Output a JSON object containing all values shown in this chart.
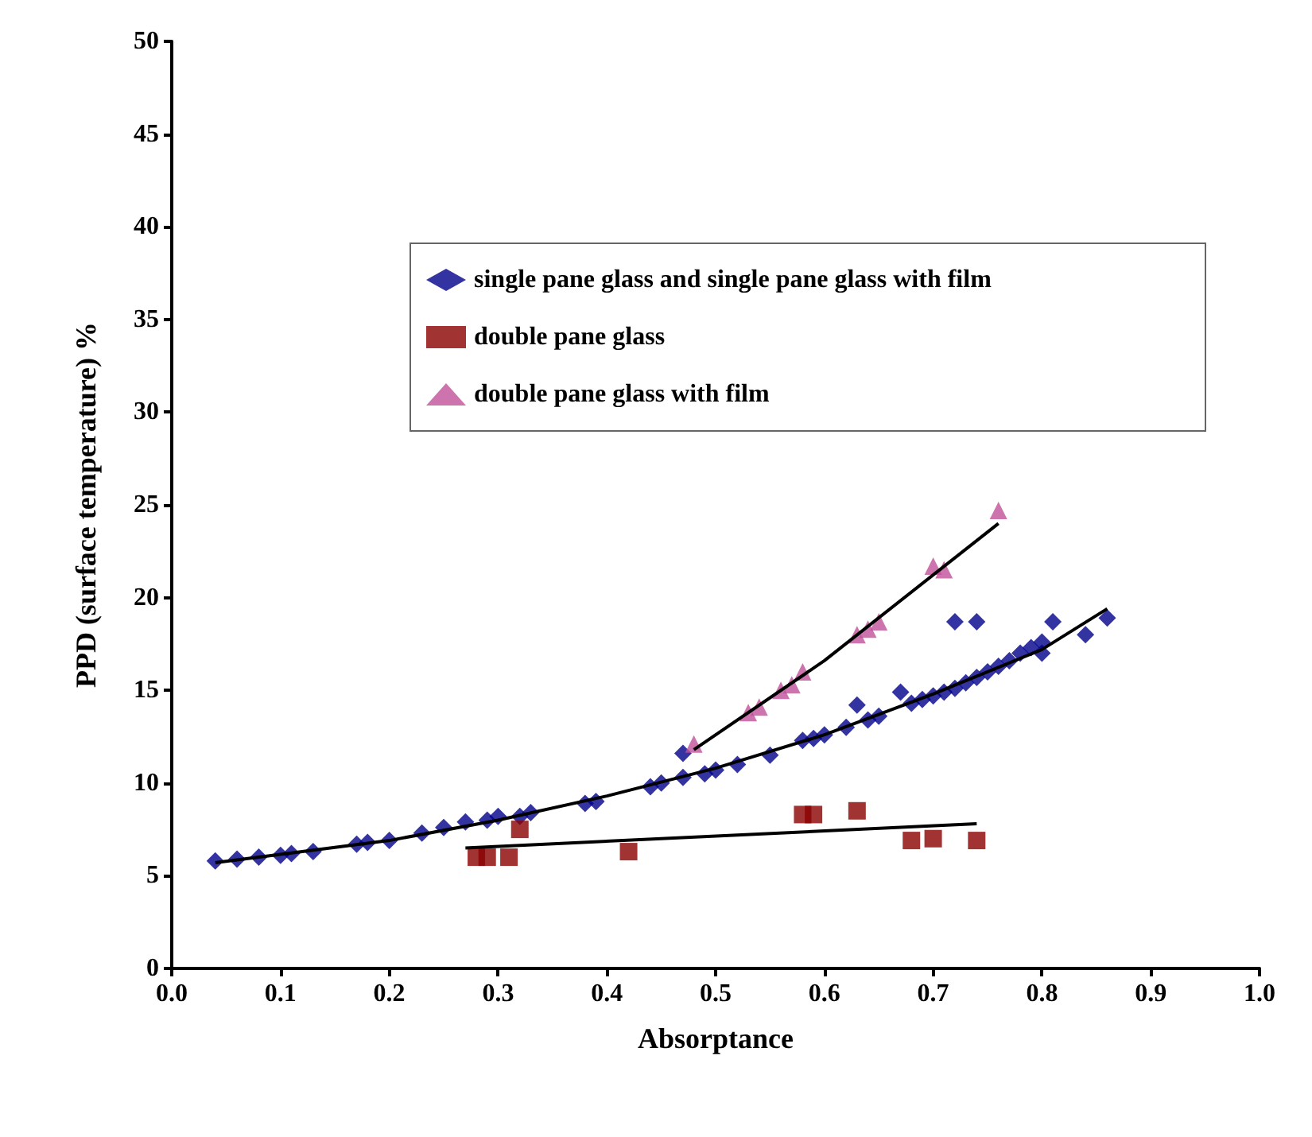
{
  "chart_data": {
    "type": "scatter",
    "xlabel": "Absorptance",
    "ylabel": "PPD (surface temperature) %",
    "xlim": [
      0,
      1
    ],
    "xticks": [
      {
        "value": 0,
        "label": "0.0"
      },
      0.1,
      0.2,
      0.3,
      0.4,
      0.5,
      0.6,
      0.7,
      0.8,
      0.9,
      {
        "value": 1,
        "label": "1.0"
      }
    ],
    "ylim": [
      0,
      50
    ],
    "yticks": [
      0,
      5,
      10,
      15,
      20,
      25,
      30,
      35,
      40,
      45,
      50
    ],
    "grid": false,
    "legend": "top right",
    "series": [
      {
        "name": "single pane glass and single pane glass with film",
        "color": "#00008b",
        "marker": "diamond",
        "x": [
          0.04,
          0.06,
          0.08,
          0.1,
          0.11,
          0.13,
          0.17,
          0.18,
          0.2,
          0.23,
          0.25,
          0.27,
          0.29,
          0.3,
          0.32,
          0.33,
          0.38,
          0.39,
          0.44,
          0.45,
          0.47,
          0.47,
          0.49,
          0.5,
          0.52,
          0.55,
          0.58,
          0.59,
          0.6,
          0.62,
          0.63,
          0.64,
          0.65,
          0.67,
          0.68,
          0.69,
          0.7,
          0.71,
          0.72,
          0.73,
          0.74,
          0.75,
          0.76,
          0.77,
          0.78,
          0.79,
          0.8,
          0.81,
          0.8,
          0.84,
          0.86,
          0.72,
          0.74
        ],
        "values": [
          5.8,
          5.9,
          6.0,
          6.1,
          6.2,
          6.3,
          6.7,
          6.8,
          6.9,
          7.3,
          7.6,
          7.9,
          8.0,
          8.2,
          8.2,
          8.4,
          8.9,
          9.0,
          9.8,
          10.0,
          11.6,
          10.3,
          10.5,
          10.7,
          11.0,
          11.5,
          12.3,
          12.4,
          12.6,
          13.0,
          14.2,
          13.4,
          13.6,
          14.9,
          14.3,
          14.5,
          14.7,
          14.9,
          15.1,
          15.4,
          15.7,
          16.0,
          16.3,
          16.6,
          17.0,
          17.3,
          17.6,
          18.7,
          17.0,
          18.0,
          18.9,
          18.7,
          18.7
        ]
      },
      {
        "name": "double pane glass",
        "color": "#8b0000",
        "marker": "square",
        "x": [
          0.28,
          0.29,
          0.31,
          0.32,
          0.42,
          0.58,
          0.59,
          0.63,
          0.68,
          0.7,
          0.74
        ],
        "values": [
          6.0,
          6.0,
          6.0,
          7.5,
          6.3,
          8.3,
          8.3,
          8.5,
          6.9,
          7.0,
          6.9
        ]
      },
      {
        "name": "double pane glass with film",
        "color": "#c0509a",
        "marker": "triangle",
        "x": [
          0.48,
          0.53,
          0.54,
          0.56,
          0.57,
          0.58,
          0.63,
          0.64,
          0.65,
          0.7,
          0.71,
          0.76
        ],
        "values": [
          12.1,
          13.8,
          14.1,
          15.0,
          15.3,
          16.0,
          18.0,
          18.3,
          18.7,
          21.7,
          21.5,
          24.7
        ]
      },
      {
        "type": "line",
        "color": "#000000",
        "marker": "none",
        "x": [
          0.04,
          0.2,
          0.3,
          0.4,
          0.5,
          0.6,
          0.7,
          0.8,
          0.86
        ],
        "values": [
          5.7,
          6.9,
          8.0,
          9.3,
          10.8,
          12.6,
          14.8,
          17.2,
          19.4
        ]
      },
      {
        "type": "line",
        "color": "#000000",
        "marker": "none",
        "x": [
          0.27,
          0.74
        ],
        "values": [
          6.5,
          7.8
        ]
      },
      {
        "type": "line",
        "color": "#000000",
        "marker": "none",
        "x": [
          0.48,
          0.6,
          0.76
        ],
        "values": [
          11.8,
          16.6,
          24.0
        ]
      }
    ]
  }
}
